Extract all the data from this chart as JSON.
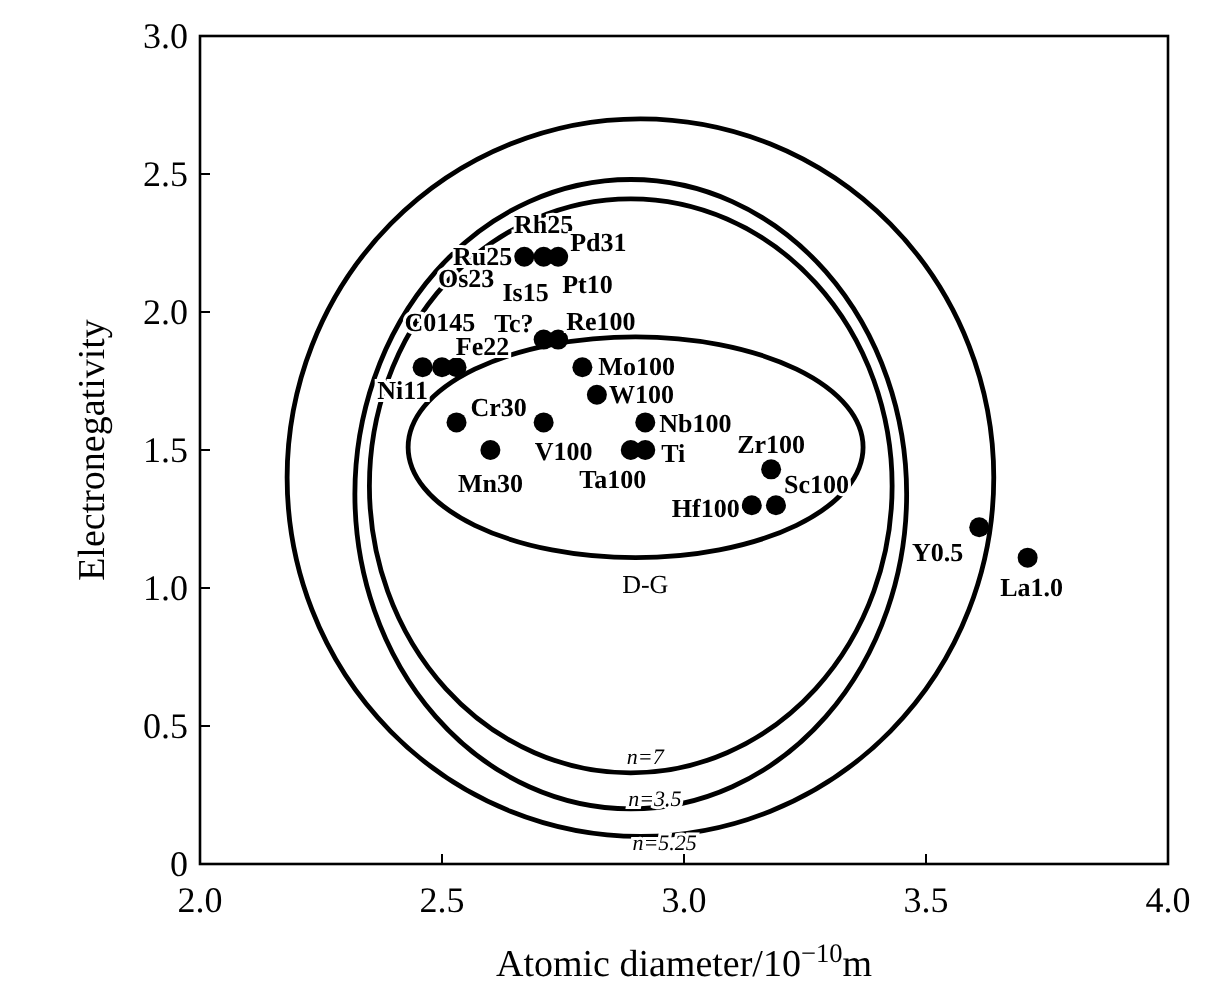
{
  "chart_data": {
    "type": "scatter",
    "xlabel": "Atomic diameter/10$^{−10}$m",
    "ylabel": "Electronegativity",
    "xlim": [
      2.0,
      4.0
    ],
    "ylim": [
      0,
      3.0
    ],
    "xticks": [
      {
        "value": 2,
        "label": "2.0"
      },
      2.5,
      {
        "value": 3,
        "label": "3.0"
      },
      3.5,
      {
        "value": 4,
        "label": "4.0"
      }
    ],
    "yticks": [
      0,
      0.5,
      {
        "value": 1,
        "label": "1.0"
      },
      1.5,
      {
        "value": 2,
        "label": "2.0"
      },
      2.5,
      {
        "value": 3,
        "label": "3.0"
      }
    ],
    "grid": false,
    "marker": "circle",
    "series": [
      {
        "color": "#000000",
        "x": [
          2.46,
          2.5,
          2.53,
          2.67,
          2.71,
          2.74,
          2.71,
          2.74,
          2.79,
          2.82,
          2.92,
          2.53,
          2.71,
          2.6,
          2.89,
          2.92,
          3.18,
          3.19,
          3.14,
          3.61,
          3.71
        ],
        "values": [
          1.8,
          1.8,
          1.8,
          2.2,
          2.2,
          2.2,
          1.9,
          1.9,
          1.8,
          1.7,
          1.6,
          1.6,
          1.6,
          1.5,
          1.5,
          1.5,
          1.43,
          1.3,
          1.3,
          1.22,
          1.11
        ]
      }
    ],
    "annotations": [
      {
        "text": "Ni11",
        "x": 2.46,
        "y": 1.8
      },
      {
        "text": "C0145",
        "x": 2.5,
        "y": 1.8
      },
      {
        "text": "Fe22",
        "x": 2.53,
        "y": 1.8
      },
      {
        "text": "Ru25",
        "x": 2.67,
        "y": 2.2
      },
      {
        "text": "Rh25",
        "x": 2.71,
        "y": 2.2
      },
      {
        "text": "Pd31",
        "x": 2.74,
        "y": 2.2
      },
      {
        "text": "Os23",
        "x": 2.67,
        "y": 2.2
      },
      {
        "text": "Is15",
        "x": 2.71,
        "y": 2.2
      },
      {
        "text": "Pt10",
        "x": 2.74,
        "y": 2.2
      },
      {
        "text": "Tc?",
        "x": 2.71,
        "y": 1.9
      },
      {
        "text": "Re100",
        "x": 2.74,
        "y": 1.9
      },
      {
        "text": "Mo100",
        "x": 2.79,
        "y": 1.8
      },
      {
        "text": "W100",
        "x": 2.82,
        "y": 1.7
      },
      {
        "text": "Nb100",
        "x": 2.92,
        "y": 1.6
      },
      {
        "text": "Cr30",
        "x": 2.53,
        "y": 1.6
      },
      {
        "text": "V100",
        "x": 2.71,
        "y": 1.6
      },
      {
        "text": "Mn30",
        "x": 2.6,
        "y": 1.5
      },
      {
        "text": "Ta100",
        "x": 2.89,
        "y": 1.5
      },
      {
        "text": "Ti",
        "x": 2.92,
        "y": 1.5
      },
      {
        "text": "Zr100",
        "x": 3.18,
        "y": 1.43
      },
      {
        "text": "Sc100",
        "x": 3.19,
        "y": 1.3
      },
      {
        "text": "Hf100",
        "x": 3.14,
        "y": 1.3
      },
      {
        "text": "Y0.5",
        "x": 3.61,
        "y": 1.22
      },
      {
        "text": "La1.0",
        "x": 3.71,
        "y": 1.11
      },
      "D-G",
      "n=7",
      "n=3.5",
      "n=5.25"
    ]
  }
}
